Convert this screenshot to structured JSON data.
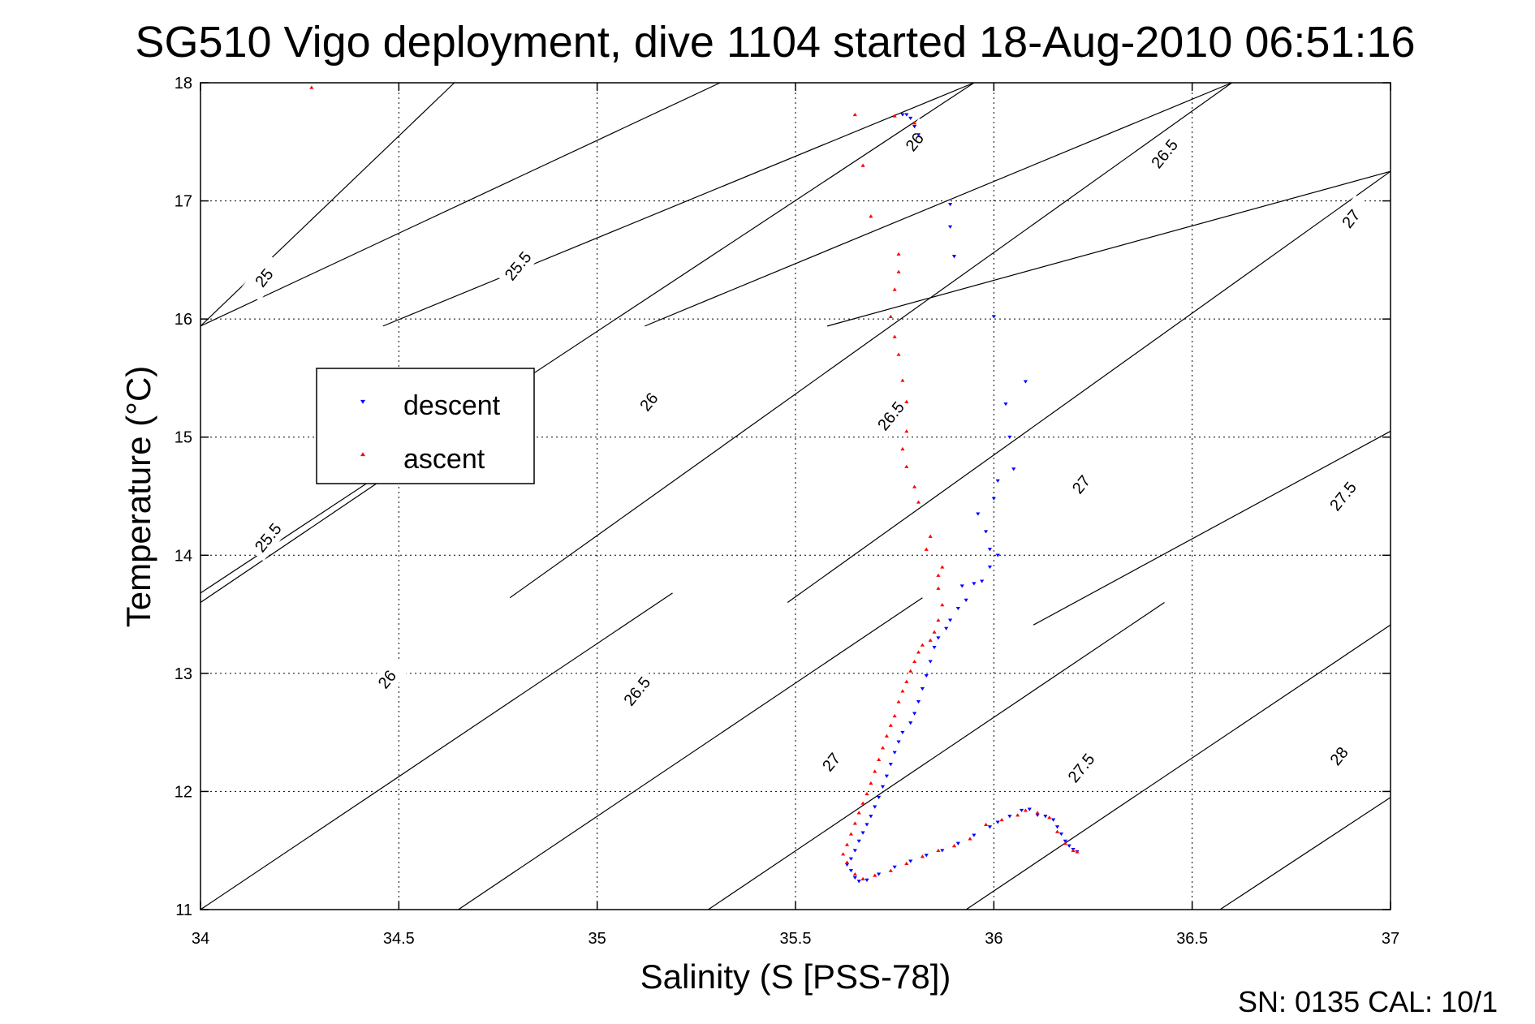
{
  "chart_data": {
    "type": "scatter",
    "title": "SG510 Vigo deployment, dive 1104 started 18-Aug-2010 06:51:16",
    "xlabel": "Salinity (S [PSS-78])",
    "ylabel": "Temperature (°C)",
    "xlim": [
      34,
      37
    ],
    "ylim": [
      11,
      18
    ],
    "x_ticks": [
      "34",
      "34.5",
      "35",
      "35.5",
      "36",
      "36.5",
      "37"
    ],
    "y_ticks": [
      "11",
      "12",
      "13",
      "14",
      "15",
      "16",
      "17",
      "18"
    ],
    "grid": true,
    "legend_position": "left",
    "footer": "SN: 0135  CAL: 10/1",
    "colors": {
      "descent": "#0000ff",
      "ascent": "#ff0000",
      "contour": "#000000"
    },
    "contours": [
      {
        "label": "25.5",
        "x": [
          34,
          34.78
        ],
        "y": [
          13.6,
          15.37
        ]
      },
      {
        "label": "26",
        "x": [
          34,
          35.19
        ],
        "y": [
          11.0,
          13.68
        ]
      },
      {
        "label": "26.5",
        "x": [
          34.65,
          35.82
        ],
        "y": [
          11.0,
          13.64
        ]
      },
      {
        "label": "27",
        "x": [
          35.28,
          36.43
        ],
        "y": [
          11.0,
          13.6
        ]
      },
      {
        "label": "27.5",
        "x": [
          35.93,
          37
        ],
        "y": [
          11.0,
          13.41
        ]
      },
      {
        "label": "28",
        "x": [
          36.57,
          37
        ],
        "y": [
          11.0,
          11.95
        ]
      },
      {
        "label": "25",
        "x": [
          34,
          34.64
        ],
        "y": [
          15.94,
          18
        ]
      },
      {
        "label": "25.5",
        "x": [
          34,
          35.31
        ],
        "y": [
          15.94,
          18
        ]
      },
      {
        "label": "26",
        "x": [
          34.46,
          35.95
        ],
        "y": [
          15.94,
          18
        ]
      },
      {
        "label": "26.5",
        "x": [
          35.12,
          36.6
        ],
        "y": [
          15.94,
          18
        ]
      },
      {
        "label": "27",
        "x": [
          35.58,
          37
        ],
        "y": [
          15.94,
          17.25
        ]
      },
      {
        "label": "26",
        "x": [
          34,
          35.95
        ],
        "y": [
          13.68,
          18
        ]
      },
      {
        "label": "26.5",
        "x": [
          34.78,
          36.6
        ],
        "y": [
          13.64,
          18
        ]
      },
      {
        "label": "27",
        "x": [
          35.48,
          37
        ],
        "y": [
          13.6,
          17.25
        ]
      },
      {
        "label": "27.5",
        "x": [
          36.1,
          37
        ],
        "y": [
          13.41,
          15.05
        ]
      }
    ],
    "contour_label_positions": [
      {
        "label": "25",
        "x": 34.16,
        "y": 16.35
      },
      {
        "label": "25.5",
        "x": 34.8,
        "y": 16.45
      },
      {
        "label": "25.5",
        "x": 34.17,
        "y": 14.15
      },
      {
        "label": "26",
        "x": 35.13,
        "y": 15.3
      },
      {
        "label": "26",
        "x": 34.47,
        "y": 12.95
      },
      {
        "label": "26",
        "x": 35.8,
        "y": 17.5
      },
      {
        "label": "26.5",
        "x": 35.74,
        "y": 15.18
      },
      {
        "label": "26.5",
        "x": 35.1,
        "y": 12.85
      },
      {
        "label": "26.5",
        "x": 36.43,
        "y": 17.4
      },
      {
        "label": "27",
        "x": 35.59,
        "y": 12.25
      },
      {
        "label": "27",
        "x": 36.22,
        "y": 14.6
      },
      {
        "label": "27",
        "x": 36.9,
        "y": 16.85
      },
      {
        "label": "27.5",
        "x": 36.22,
        "y": 12.2
      },
      {
        "label": "27.5",
        "x": 36.88,
        "y": 14.5
      },
      {
        "label": "28",
        "x": 36.87,
        "y": 12.3
      }
    ],
    "series": [
      {
        "name": "descent",
        "marker": "triangle-down",
        "points": [
          [
            35.77,
            17.73
          ],
          [
            35.78,
            17.73
          ],
          [
            35.79,
            17.7
          ],
          [
            35.8,
            17.63
          ],
          [
            35.81,
            17.56
          ],
          [
            35.89,
            16.97
          ],
          [
            35.89,
            16.78
          ],
          [
            35.9,
            16.53
          ],
          [
            36.0,
            16.02
          ],
          [
            36.08,
            15.47
          ],
          [
            36.03,
            15.28
          ],
          [
            36.04,
            15.0
          ],
          [
            36.05,
            14.73
          ],
          [
            36.01,
            14.63
          ],
          [
            36.0,
            14.48
          ],
          [
            35.96,
            14.35
          ],
          [
            35.98,
            14.2
          ],
          [
            35.99,
            14.05
          ],
          [
            36.01,
            14.0
          ],
          [
            35.99,
            13.9
          ],
          [
            35.97,
            13.78
          ],
          [
            35.95,
            13.76
          ],
          [
            35.92,
            13.74
          ],
          [
            35.93,
            13.62
          ],
          [
            35.91,
            13.55
          ],
          [
            35.89,
            13.45
          ],
          [
            35.88,
            13.38
          ],
          [
            35.86,
            13.3
          ],
          [
            35.85,
            13.22
          ],
          [
            35.84,
            13.1
          ],
          [
            35.83,
            12.98
          ],
          [
            35.82,
            12.87
          ],
          [
            35.81,
            12.76
          ],
          [
            35.8,
            12.66
          ],
          [
            35.79,
            12.58
          ],
          [
            35.77,
            12.5
          ],
          [
            35.76,
            12.42
          ],
          [
            35.75,
            12.33
          ],
          [
            35.74,
            12.23
          ],
          [
            35.73,
            12.13
          ],
          [
            35.72,
            12.04
          ],
          [
            35.71,
            11.95
          ],
          [
            35.7,
            11.87
          ],
          [
            35.69,
            11.79
          ],
          [
            35.68,
            11.72
          ],
          [
            35.67,
            11.65
          ],
          [
            35.66,
            11.58
          ],
          [
            35.65,
            11.5
          ],
          [
            35.64,
            11.43
          ],
          [
            35.63,
            11.38
          ],
          [
            35.64,
            11.33
          ],
          [
            35.65,
            11.27
          ],
          [
            35.66,
            11.24
          ],
          [
            35.68,
            11.25
          ],
          [
            35.71,
            11.3
          ],
          [
            35.75,
            11.36
          ],
          [
            35.79,
            11.41
          ],
          [
            35.83,
            11.46
          ],
          [
            35.87,
            11.5
          ],
          [
            35.91,
            11.56
          ],
          [
            35.95,
            11.63
          ],
          [
            35.99,
            11.7
          ],
          [
            36.01,
            11.74
          ],
          [
            36.04,
            11.79
          ],
          [
            36.07,
            11.84
          ],
          [
            36.09,
            11.85
          ],
          [
            36.11,
            11.8
          ],
          [
            36.13,
            11.79
          ],
          [
            36.15,
            11.76
          ],
          [
            36.16,
            11.7
          ],
          [
            36.17,
            11.64
          ],
          [
            36.18,
            11.58
          ],
          [
            36.19,
            11.54
          ],
          [
            36.2,
            11.51
          ],
          [
            36.21,
            11.49
          ]
        ]
      },
      {
        "name": "ascent",
        "marker": "triangle-up",
        "points": [
          [
            34.28,
            17.96
          ],
          [
            35.65,
            17.73
          ],
          [
            35.75,
            17.72
          ],
          [
            35.8,
            17.66
          ],
          [
            35.67,
            17.3
          ],
          [
            35.69,
            16.87
          ],
          [
            35.76,
            16.55
          ],
          [
            35.76,
            16.4
          ],
          [
            35.75,
            16.25
          ],
          [
            35.74,
            16.02
          ],
          [
            35.75,
            15.85
          ],
          [
            35.76,
            15.7
          ],
          [
            35.77,
            15.48
          ],
          [
            35.78,
            15.3
          ],
          [
            35.78,
            15.05
          ],
          [
            35.77,
            14.9
          ],
          [
            35.78,
            14.75
          ],
          [
            35.8,
            14.58
          ],
          [
            35.81,
            14.45
          ],
          [
            35.84,
            14.16
          ],
          [
            35.83,
            14.05
          ],
          [
            35.87,
            13.9
          ],
          [
            35.86,
            13.83
          ],
          [
            35.86,
            13.72
          ],
          [
            35.87,
            13.58
          ],
          [
            35.86,
            13.45
          ],
          [
            35.85,
            13.35
          ],
          [
            35.84,
            13.28
          ],
          [
            35.82,
            13.24
          ],
          [
            35.81,
            13.18
          ],
          [
            35.8,
            13.1
          ],
          [
            35.79,
            13.02
          ],
          [
            35.78,
            12.93
          ],
          [
            35.77,
            12.85
          ],
          [
            35.76,
            12.76
          ],
          [
            35.75,
            12.64
          ],
          [
            35.74,
            12.56
          ],
          [
            35.73,
            12.47
          ],
          [
            35.72,
            12.37
          ],
          [
            35.71,
            12.27
          ],
          [
            35.7,
            12.17
          ],
          [
            35.69,
            12.07
          ],
          [
            35.68,
            11.98
          ],
          [
            35.67,
            11.9
          ],
          [
            35.66,
            11.82
          ],
          [
            35.65,
            11.73
          ],
          [
            35.64,
            11.64
          ],
          [
            35.63,
            11.55
          ],
          [
            35.62,
            11.47
          ],
          [
            35.63,
            11.4
          ],
          [
            35.65,
            11.3
          ],
          [
            35.67,
            11.26
          ],
          [
            35.7,
            11.29
          ],
          [
            35.74,
            11.33
          ],
          [
            35.78,
            11.39
          ],
          [
            35.82,
            11.45
          ],
          [
            35.86,
            11.5
          ],
          [
            35.9,
            11.54
          ],
          [
            35.94,
            11.6
          ],
          [
            35.98,
            11.72
          ],
          [
            36.02,
            11.76
          ],
          [
            36.06,
            11.8
          ],
          [
            36.08,
            11.84
          ],
          [
            36.11,
            11.82
          ],
          [
            36.14,
            11.78
          ],
          [
            36.16,
            11.66
          ],
          [
            36.18,
            11.56
          ],
          [
            36.2,
            11.5
          ],
          [
            36.21,
            11.49
          ]
        ]
      }
    ]
  }
}
